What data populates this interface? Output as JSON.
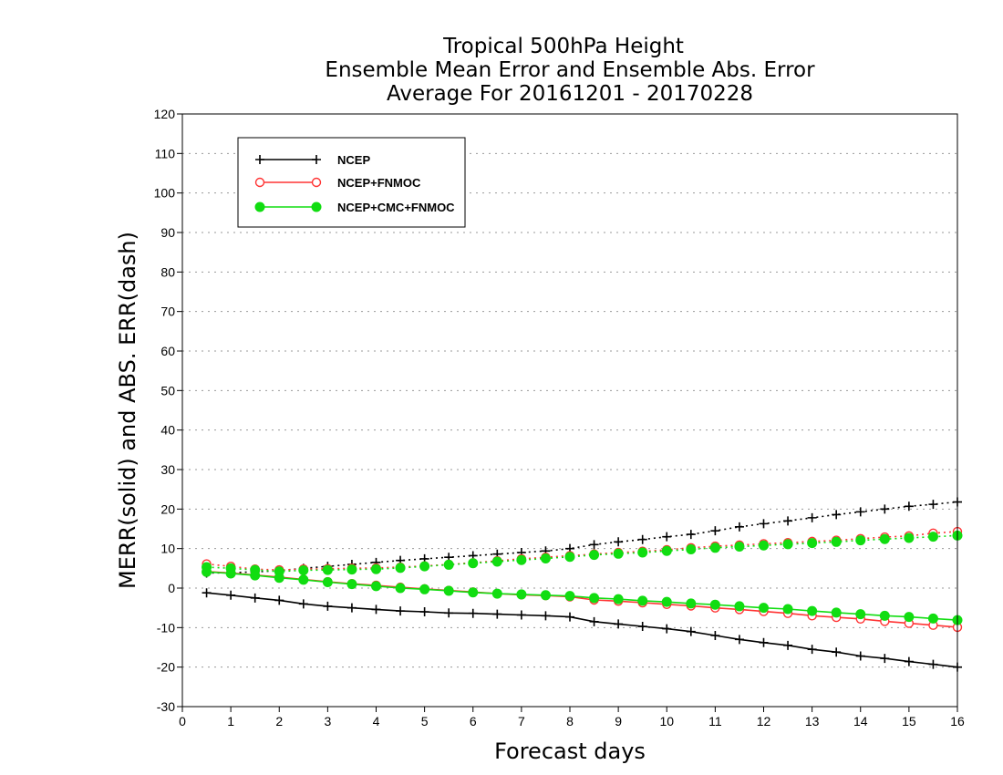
{
  "chart_data": {
    "type": "line",
    "title": [
      "Tropical 500hPa Height",
      "Ensemble Mean Error and Ensemble Abs. Error",
      "Average For 20161201 - 20170228"
    ],
    "xlabel": "Forecast days",
    "ylabel": "MERR(solid) and ABS. ERR(dash)",
    "xlim": [
      0,
      16
    ],
    "ylim": [
      -30,
      120
    ],
    "xticks": [
      "0",
      "1",
      "2",
      "3",
      "4",
      "5",
      "6",
      "7",
      "8",
      "9",
      "10",
      "11",
      "12",
      "13",
      "14",
      "15",
      "16"
    ],
    "yticks": [
      "-30",
      "-20",
      "-10",
      "0",
      "10",
      "20",
      "30",
      "40",
      "50",
      "60",
      "70",
      "80",
      "90",
      "100",
      "110",
      "120"
    ],
    "grid": "dotted-horizontal",
    "legend_position": "top-left",
    "x": [
      0.5,
      1,
      1.5,
      2,
      2.5,
      3,
      3.5,
      4,
      4.5,
      5,
      5.5,
      6,
      6.5,
      7,
      7.5,
      8,
      8.5,
      9,
      9.5,
      10,
      10.5,
      11,
      11.5,
      12,
      12.5,
      13,
      13.5,
      14,
      14.5,
      15,
      15.5,
      16
    ],
    "series": [
      {
        "name": "NCEP",
        "color": "#000000",
        "marker": "plus",
        "merr": [
          -1.2,
          -1.8,
          -2.5,
          -3.1,
          -4,
          -4.6,
          -5,
          -5.4,
          -5.8,
          -6,
          -6.3,
          -6.4,
          -6.6,
          -6.8,
          -7,
          -7.3,
          -8.5,
          -9.1,
          -9.7,
          -10.3,
          -11,
          -12,
          -13,
          -13.8,
          -14.5,
          -15.5,
          -16.2,
          -17.2,
          -17.8,
          -18.6,
          -19.3,
          -20
        ],
        "abserr": [
          3.8,
          3.9,
          4.1,
          4.4,
          5,
          5.5,
          6,
          6.5,
          7,
          7.4,
          7.8,
          8.2,
          8.6,
          9,
          9.4,
          10,
          11,
          11.7,
          12.3,
          13,
          13.6,
          14.5,
          15.5,
          16.3,
          17,
          17.8,
          18.6,
          19.3,
          20,
          20.7,
          21.2,
          21.8
        ]
      },
      {
        "name": "NCEP+FNMOC",
        "color": "#ff3333",
        "marker": "open-circle",
        "merr": [
          4.2,
          3.8,
          3.3,
          2.8,
          2.2,
          1.6,
          1.1,
          0.7,
          0.2,
          -0.2,
          -0.6,
          -1,
          -1.4,
          -1.7,
          -1.9,
          -2.2,
          -3,
          -3.3,
          -3.7,
          -4.1,
          -4.5,
          -5,
          -5.4,
          -5.9,
          -6.4,
          -7,
          -7.4,
          -7.8,
          -8.4,
          -8.9,
          -9.4,
          -9.9
        ],
        "abserr": [
          6.1,
          5.5,
          4.8,
          4.6,
          4.8,
          4.9,
          5,
          5.1,
          5.3,
          5.6,
          6,
          6.4,
          6.9,
          7.4,
          7.8,
          8.2,
          8.6,
          9,
          9.3,
          9.7,
          10.2,
          10.6,
          10.9,
          11.2,
          11.5,
          11.8,
          12.1,
          12.5,
          12.9,
          13.2,
          13.9,
          14.3
        ]
      },
      {
        "name": "NCEP+CMC+FNMOC",
        "color": "#11dd11",
        "marker": "filled-circle",
        "merr": [
          4.1,
          3.7,
          3.2,
          2.6,
          2.1,
          1.5,
          1,
          0.5,
          0,
          -0.3,
          -0.7,
          -1.1,
          -1.4,
          -1.6,
          -1.8,
          -2,
          -2.5,
          -2.8,
          -3.2,
          -3.5,
          -3.9,
          -4.2,
          -4.6,
          -5,
          -5.3,
          -5.8,
          -6.2,
          -6.6,
          -7,
          -7.3,
          -7.7,
          -8.1
        ],
        "abserr": [
          5.3,
          5,
          4.6,
          4.2,
          4.5,
          4.6,
          4.7,
          4.8,
          5.1,
          5.5,
          5.9,
          6.3,
          6.7,
          7.1,
          7.5,
          7.9,
          8.4,
          8.7,
          9,
          9.4,
          9.8,
          10.2,
          10.5,
          10.8,
          11.1,
          11.4,
          11.7,
          12.1,
          12.4,
          12.7,
          13,
          13.3
        ]
      }
    ]
  }
}
